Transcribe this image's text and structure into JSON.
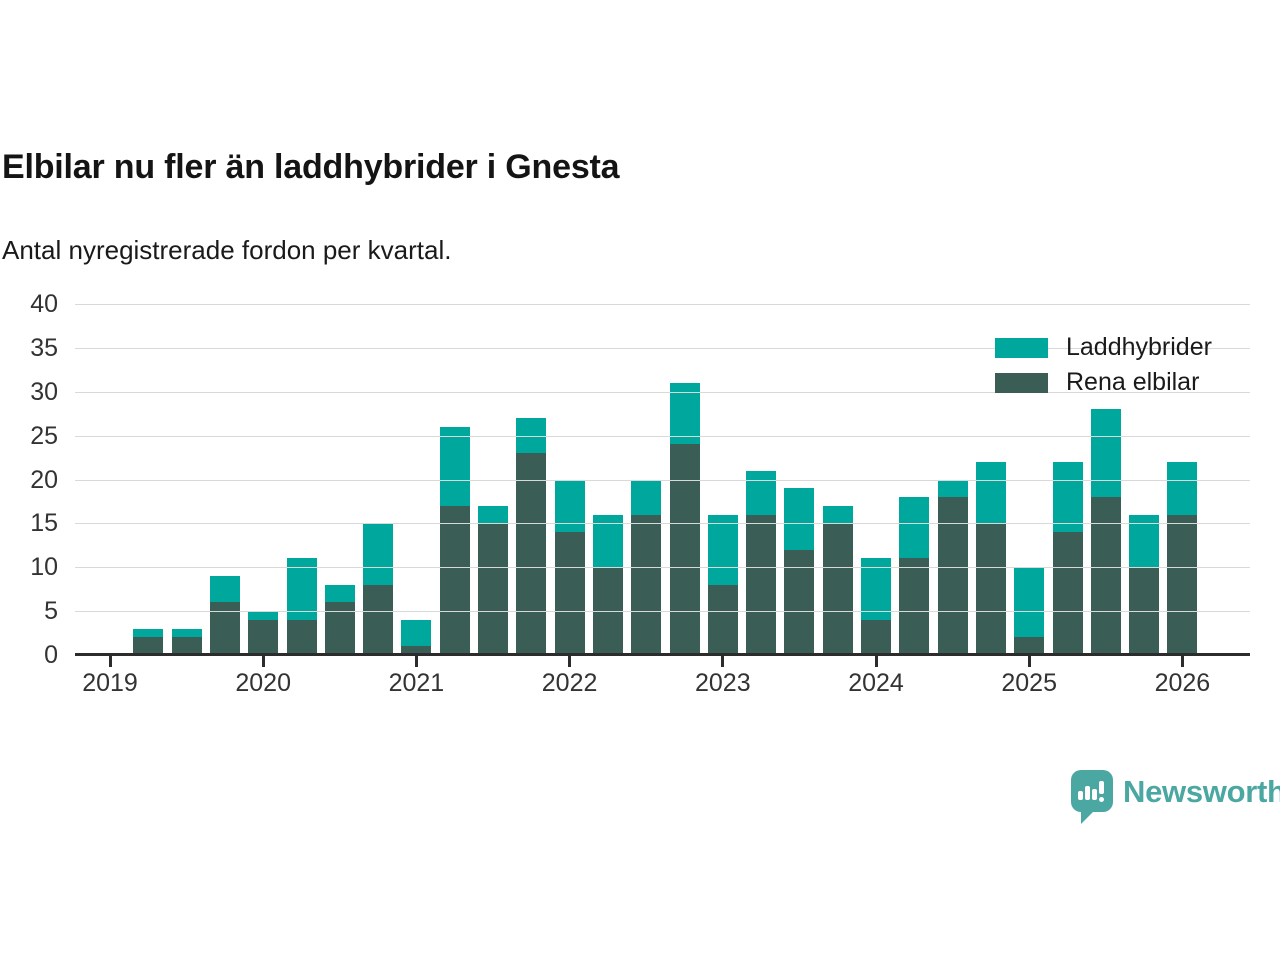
{
  "header": {
    "title": "Elbilar nu fler än laddhybrider i Gnesta",
    "subtitle": "Antal nyregistrerade fordon per kvartal."
  },
  "legend": {
    "position": "top-right",
    "items": [
      {
        "label": "Laddhybrider",
        "color": "#00a79c"
      },
      {
        "label": "Rena elbilar",
        "color": "#3a5d55"
      }
    ]
  },
  "colors": {
    "laddhybrider": "#00a79c",
    "rena_elbilar": "#3a5d55",
    "axis": "#2c2c2c",
    "gridline": "#d9d9d9",
    "text": "#333333",
    "brand_teal": "#4ba7a1"
  },
  "branding": {
    "name": "Newsworthy",
    "logo_icon": "bar-chart-speech-bubble-icon",
    "color": "#4ba7a1"
  },
  "chart_data": {
    "type": "bar",
    "stacked": true,
    "title": "Elbilar nu fler än laddhybrider i Gnesta",
    "subtitle": "Antal nyregistrerade fordon per kvartal.",
    "xlabel": "",
    "ylabel": "",
    "ylim": [
      0,
      40
    ],
    "y_ticks": [
      0,
      5,
      10,
      15,
      20,
      25,
      30,
      35,
      40
    ],
    "grid": "horizontal",
    "legend_position": "top-right",
    "categories": [
      "2019 Q1",
      "2019 Q2",
      "2019 Q3",
      "2019 Q4",
      "2020 Q1",
      "2020 Q2",
      "2020 Q3",
      "2020 Q4",
      "2021 Q1",
      "2021 Q2",
      "2021 Q3",
      "2021 Q4",
      "2022 Q1",
      "2022 Q2",
      "2022 Q3",
      "2022 Q4",
      "2023 Q1",
      "2023 Q2",
      "2023 Q3",
      "2023 Q4",
      "2024 Q1",
      "2024 Q2",
      "2024 Q3",
      "2024 Q4",
      "2025 Q1",
      "2025 Q2",
      "2025 Q3",
      "2025 Q4",
      "2026 Q1"
    ],
    "x_ticks": [
      {
        "label": "2019",
        "index": 0
      },
      {
        "label": "2020",
        "index": 4
      },
      {
        "label": "2021",
        "index": 8
      },
      {
        "label": "2022",
        "index": 12
      },
      {
        "label": "2023",
        "index": 16
      },
      {
        "label": "2024",
        "index": 20
      },
      {
        "label": "2025",
        "index": 24
      },
      {
        "label": "2026",
        "index": 28
      }
    ],
    "stack_bottom_to_top": [
      "Rena elbilar",
      "Laddhybrider"
    ],
    "series": [
      {
        "name": "Laddhybrider",
        "color": "#00a79c",
        "values": [
          0,
          1,
          1,
          3,
          1,
          7,
          2,
          7,
          3,
          9,
          2,
          4,
          6,
          6,
          4,
          7,
          8,
          5,
          7,
          2,
          7,
          7,
          2,
          7,
          8,
          8,
          10,
          6,
          6
        ]
      },
      {
        "name": "Rena elbilar",
        "color": "#3a5d55",
        "values": [
          0,
          2,
          2,
          6,
          4,
          4,
          6,
          8,
          1,
          17,
          15,
          23,
          14,
          10,
          16,
          24,
          8,
          16,
          12,
          15,
          4,
          11,
          18,
          15,
          2,
          14,
          18,
          10,
          16
        ]
      }
    ]
  }
}
